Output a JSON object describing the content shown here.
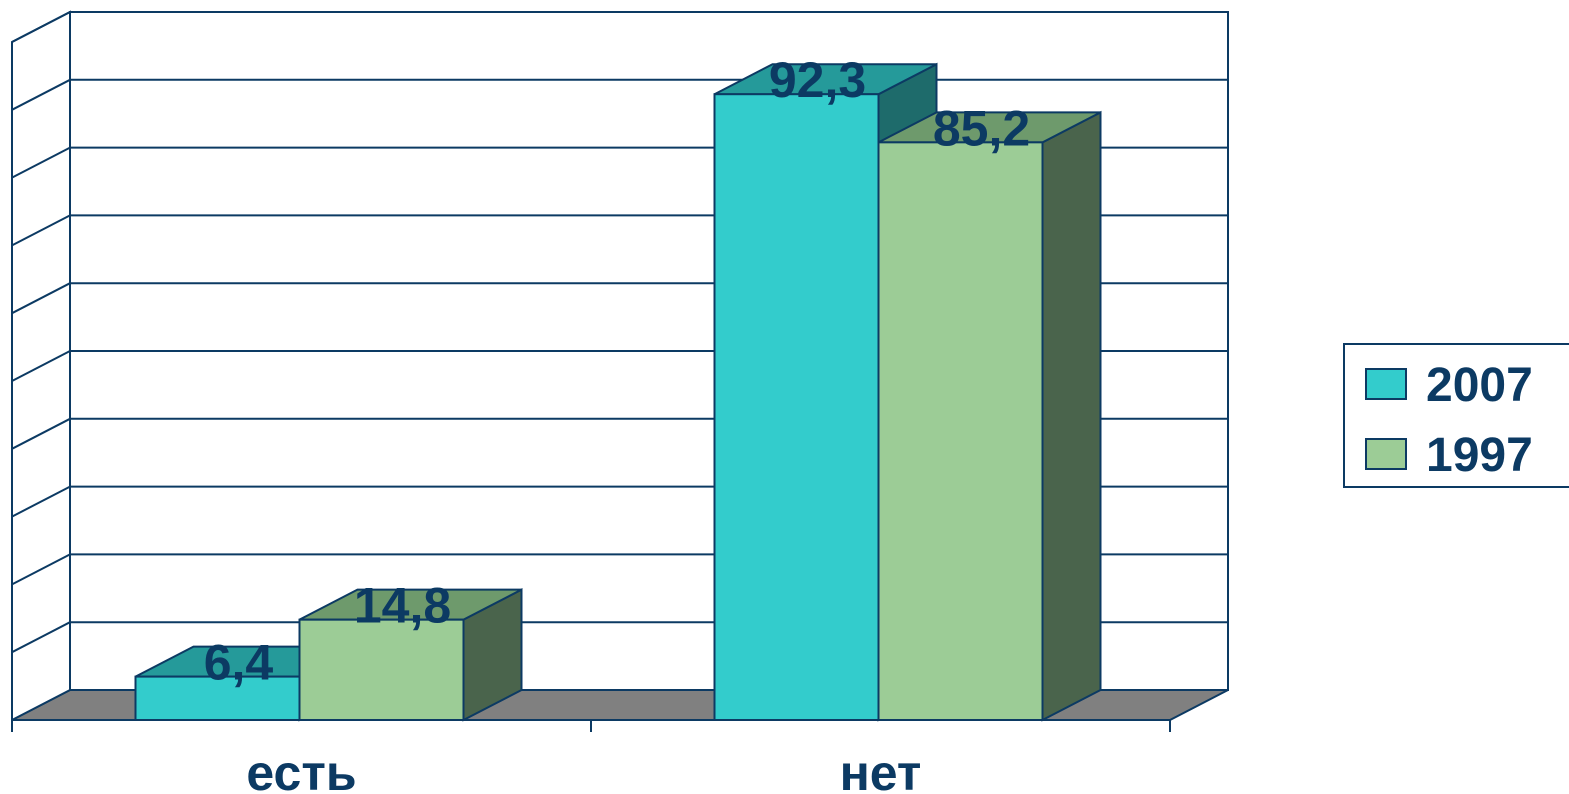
{
  "chart_data": {
    "type": "bar",
    "title": "",
    "xlabel": "",
    "ylabel": "",
    "categories": [
      "есть",
      "нет"
    ],
    "series": [
      {
        "name": "2007",
        "values": [
          6.4,
          92.3
        ],
        "labels": [
          "6,4",
          "92,3"
        ],
        "color": "#33cccc",
        "top_color": "#259a9a",
        "side_color": "#1e6b6b"
      },
      {
        "name": "1997",
        "values": [
          14.8,
          85.2
        ],
        "labels": [
          "14,8",
          "85,2"
        ],
        "color": "#9ccc96",
        "top_color": "#6e9a6c",
        "side_color": "#4a644c"
      }
    ],
    "ylim": [
      0,
      100
    ],
    "y_gridlines": 10,
    "grid": true,
    "show_y_tick_labels": false,
    "legend": "right",
    "colors": {
      "axis": "#0c3a63",
      "floor": "#808080",
      "text": "#0c3a63"
    }
  }
}
